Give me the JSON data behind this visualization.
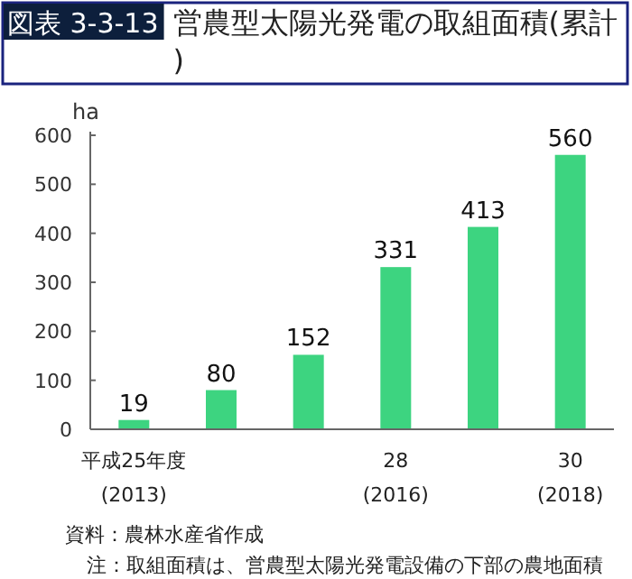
{
  "chart_data": {
    "type": "bar",
    "title": "図表 3-3-13 営農型太陽光発電の取組面積(累計)",
    "ylabel": "ha",
    "categories": [
      "平成25年度\n(2013)",
      null,
      null,
      "28\n(2016)",
      null,
      "30\n(2018)"
    ],
    "values": [
      19,
      80,
      152,
      331,
      413,
      560
    ],
    "color": "#3dd480",
    "ylim": [
      0,
      600
    ],
    "yticks": [
      0,
      100,
      200,
      300,
      400,
      500,
      600
    ],
    "data_labels": true,
    "grid": false,
    "annotations": [
      "資料：農林水産省作成",
      "注：取組面積は、営農型太陽光発電設備の下部の農地面積"
    ]
  }
}
